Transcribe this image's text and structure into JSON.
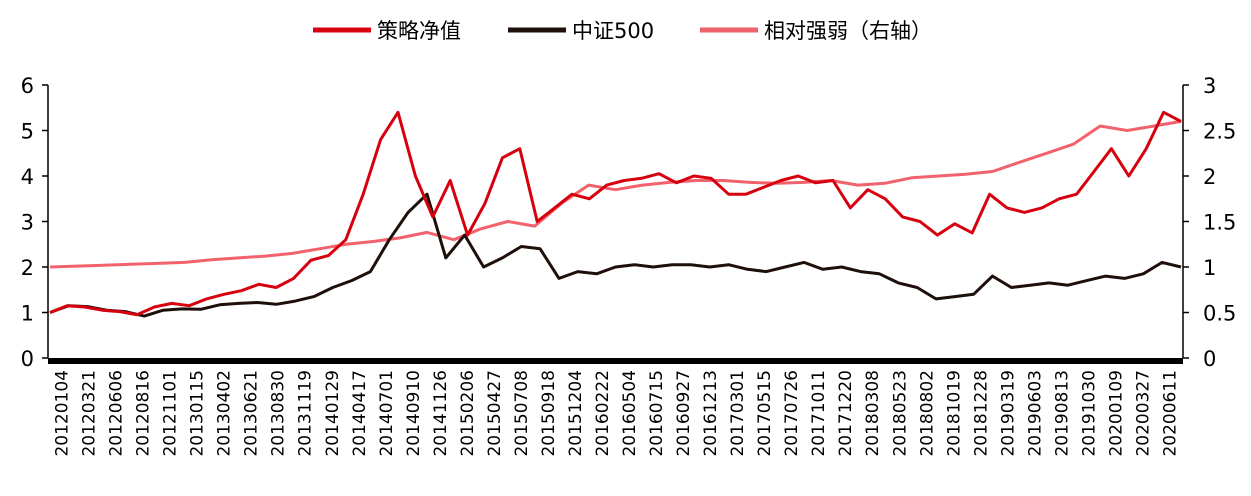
{
  "chart_data": {
    "type": "line",
    "legend_position": "top-center",
    "grid": false,
    "y_left": {
      "ylim": [
        0,
        6
      ],
      "ticks": [
        "0",
        "1",
        "2",
        "3",
        "4",
        "5",
        "6"
      ]
    },
    "y_right": {
      "ylim": [
        0,
        3
      ],
      "ticks": [
        "0",
        "0.5",
        "1",
        "1.5",
        "2",
        "2.5",
        "3"
      ]
    },
    "x_labels": [
      "20120104",
      "20120321",
      "20120606",
      "20120816",
      "20121101",
      "20130115",
      "20130402",
      "20130621",
      "20130830",
      "20131119",
      "20140129",
      "20140417",
      "20140701",
      "20140910",
      "20141126",
      "20150206",
      "20150427",
      "20150708",
      "20150918",
      "20151204",
      "20160222",
      "20160504",
      "20160715",
      "20160927",
      "20161213",
      "20170301",
      "20170515",
      "20170726",
      "20171011",
      "20171220",
      "20180308",
      "20180523",
      "20180802",
      "20181019",
      "20181228",
      "20190319",
      "20190603",
      "20190813",
      "20191030",
      "20200109",
      "20200327",
      "20200611"
    ],
    "series": [
      {
        "name": "策略净值",
        "color": "#d7000f",
        "axis": "left",
        "values": [
          1.0,
          1.15,
          1.12,
          1.05,
          1.02,
          0.95,
          1.12,
          1.2,
          1.15,
          1.3,
          1.4,
          1.48,
          1.62,
          1.55,
          1.75,
          2.15,
          2.25,
          2.6,
          3.6,
          4.8,
          5.4,
          4.0,
          3.1,
          3.9,
          2.7,
          3.4,
          4.4,
          4.6,
          3.0,
          3.3,
          3.6,
          3.5,
          3.8,
          3.9,
          3.95,
          4.05,
          3.85,
          4.0,
          3.95,
          3.6,
          3.6,
          3.75,
          3.9,
          4.0,
          3.85,
          3.9,
          3.3,
          3.7,
          3.5,
          3.1,
          3.0,
          2.7,
          2.95,
          2.75,
          3.6,
          3.3,
          3.2,
          3.3,
          3.5,
          3.6,
          4.1,
          4.6,
          4.0,
          4.6,
          5.4,
          5.2
        ]
      },
      {
        "name": "中证500",
        "color": "#1e0f0a",
        "axis": "left",
        "values": [
          1.0,
          1.15,
          1.13,
          1.05,
          1.02,
          0.92,
          1.05,
          1.08,
          1.07,
          1.17,
          1.2,
          1.22,
          1.18,
          1.25,
          1.35,
          1.55,
          1.7,
          1.9,
          2.6,
          3.2,
          3.6,
          2.2,
          2.7,
          2.0,
          2.2,
          2.45,
          2.4,
          1.75,
          1.9,
          1.85,
          2.0,
          2.05,
          2.0,
          2.05,
          2.05,
          2.0,
          2.05,
          1.95,
          1.9,
          2.0,
          2.1,
          1.95,
          2.0,
          1.9,
          1.85,
          1.65,
          1.55,
          1.3,
          1.35,
          1.4,
          1.8,
          1.55,
          1.6,
          1.65,
          1.6,
          1.7,
          1.8,
          1.75,
          1.85,
          2.1,
          2.0
        ]
      },
      {
        "name": "相对强弱（右轴）",
        "color": "#f2626c",
        "axis": "right",
        "values": [
          1.0,
          1.01,
          1.02,
          1.03,
          1.04,
          1.05,
          1.08,
          1.1,
          1.12,
          1.15,
          1.2,
          1.25,
          1.28,
          1.32,
          1.38,
          1.3,
          1.42,
          1.5,
          1.45,
          1.7,
          1.9,
          1.85,
          1.9,
          1.93,
          1.95,
          1.95,
          1.93,
          1.92,
          1.93,
          1.95,
          1.9,
          1.92,
          1.98,
          2.0,
          2.02,
          2.05,
          2.15,
          2.25,
          2.35,
          2.55,
          2.5,
          2.55,
          2.6
        ]
      }
    ]
  }
}
